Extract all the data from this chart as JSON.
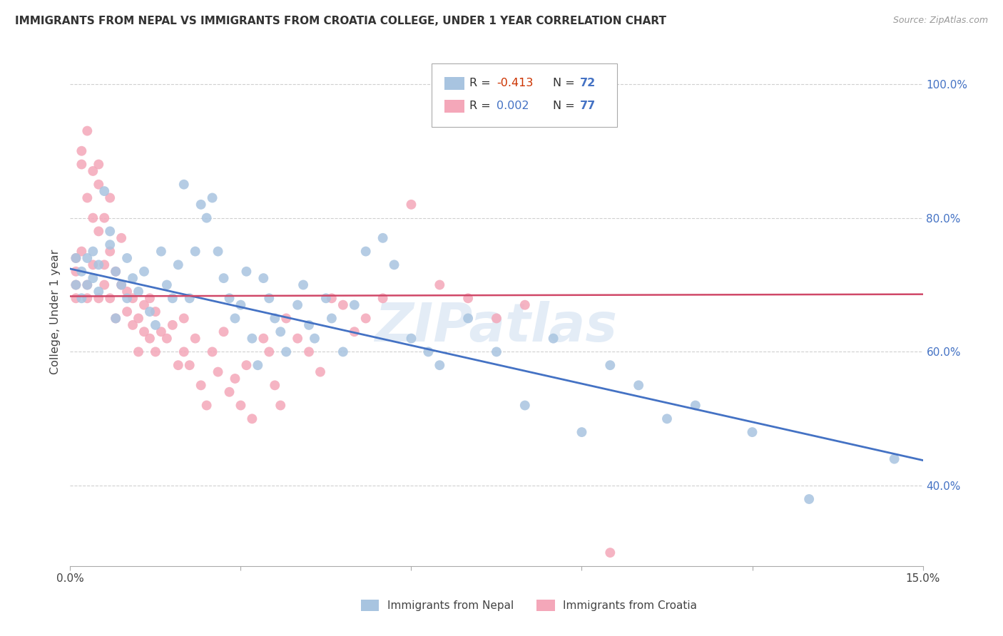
{
  "title": "IMMIGRANTS FROM NEPAL VS IMMIGRANTS FROM CROATIA COLLEGE, UNDER 1 YEAR CORRELATION CHART",
  "source": "Source: ZipAtlas.com",
  "ylabel": "College, Under 1 year",
  "xlim": [
    0.0,
    0.15
  ],
  "ylim": [
    0.28,
    1.04
  ],
  "yticks": [
    0.4,
    0.6,
    0.8,
    1.0
  ],
  "ytick_labels": [
    "40.0%",
    "60.0%",
    "80.0%",
    "100.0%"
  ],
  "xticks": [
    0.0,
    0.03,
    0.06,
    0.09,
    0.12,
    0.15
  ],
  "legend_nepal_r": "-0.413",
  "legend_nepal_n": "72",
  "legend_croatia_r": "0.002",
  "legend_croatia_n": "77",
  "legend_label_nepal": "Immigrants from Nepal",
  "legend_label_croatia": "Immigrants from Croatia",
  "blue_color": "#a8c4e0",
  "pink_color": "#f4a7b9",
  "blue_line_color": "#4472c4",
  "pink_line_color": "#d04868",
  "r_neg_color": "#cc3300",
  "r_pos_color": "#4472c4",
  "n_color": "#4472c4",
  "nepal_x": [
    0.001,
    0.001,
    0.002,
    0.002,
    0.003,
    0.003,
    0.004,
    0.004,
    0.005,
    0.005,
    0.006,
    0.007,
    0.007,
    0.008,
    0.008,
    0.009,
    0.01,
    0.01,
    0.011,
    0.012,
    0.013,
    0.014,
    0.015,
    0.016,
    0.017,
    0.018,
    0.019,
    0.02,
    0.021,
    0.022,
    0.023,
    0.024,
    0.025,
    0.026,
    0.027,
    0.028,
    0.029,
    0.03,
    0.031,
    0.032,
    0.033,
    0.034,
    0.035,
    0.036,
    0.037,
    0.038,
    0.04,
    0.041,
    0.042,
    0.043,
    0.045,
    0.046,
    0.048,
    0.05,
    0.052,
    0.055,
    0.057,
    0.06,
    0.063,
    0.065,
    0.07,
    0.075,
    0.08,
    0.085,
    0.09,
    0.095,
    0.1,
    0.105,
    0.11,
    0.12,
    0.13,
    0.145
  ],
  "nepal_y": [
    0.74,
    0.7,
    0.72,
    0.68,
    0.74,
    0.7,
    0.75,
    0.71,
    0.73,
    0.69,
    0.84,
    0.78,
    0.76,
    0.72,
    0.65,
    0.7,
    0.68,
    0.74,
    0.71,
    0.69,
    0.72,
    0.66,
    0.64,
    0.75,
    0.7,
    0.68,
    0.73,
    0.85,
    0.68,
    0.75,
    0.82,
    0.8,
    0.83,
    0.75,
    0.71,
    0.68,
    0.65,
    0.67,
    0.72,
    0.62,
    0.58,
    0.71,
    0.68,
    0.65,
    0.63,
    0.6,
    0.67,
    0.7,
    0.64,
    0.62,
    0.68,
    0.65,
    0.6,
    0.67,
    0.75,
    0.77,
    0.73,
    0.62,
    0.6,
    0.58,
    0.65,
    0.6,
    0.52,
    0.62,
    0.48,
    0.58,
    0.55,
    0.5,
    0.52,
    0.48,
    0.38,
    0.44
  ],
  "croatia_x": [
    0.001,
    0.001,
    0.001,
    0.001,
    0.002,
    0.002,
    0.002,
    0.003,
    0.003,
    0.003,
    0.003,
    0.004,
    0.004,
    0.004,
    0.005,
    0.005,
    0.005,
    0.005,
    0.006,
    0.006,
    0.006,
    0.007,
    0.007,
    0.007,
    0.008,
    0.008,
    0.009,
    0.009,
    0.01,
    0.01,
    0.011,
    0.011,
    0.012,
    0.012,
    0.013,
    0.013,
    0.014,
    0.014,
    0.015,
    0.015,
    0.016,
    0.017,
    0.018,
    0.019,
    0.02,
    0.02,
    0.021,
    0.022,
    0.023,
    0.024,
    0.025,
    0.026,
    0.027,
    0.028,
    0.029,
    0.03,
    0.031,
    0.032,
    0.034,
    0.035,
    0.036,
    0.037,
    0.038,
    0.04,
    0.042,
    0.044,
    0.046,
    0.048,
    0.05,
    0.052,
    0.055,
    0.06,
    0.065,
    0.07,
    0.075,
    0.08,
    0.095
  ],
  "croatia_y": [
    0.74,
    0.72,
    0.7,
    0.68,
    0.9,
    0.88,
    0.75,
    0.93,
    0.7,
    0.83,
    0.68,
    0.87,
    0.8,
    0.73,
    0.88,
    0.85,
    0.78,
    0.68,
    0.8,
    0.73,
    0.7,
    0.83,
    0.75,
    0.68,
    0.72,
    0.65,
    0.77,
    0.7,
    0.69,
    0.66,
    0.68,
    0.64,
    0.65,
    0.6,
    0.67,
    0.63,
    0.68,
    0.62,
    0.66,
    0.6,
    0.63,
    0.62,
    0.64,
    0.58,
    0.65,
    0.6,
    0.58,
    0.62,
    0.55,
    0.52,
    0.6,
    0.57,
    0.63,
    0.54,
    0.56,
    0.52,
    0.58,
    0.5,
    0.62,
    0.6,
    0.55,
    0.52,
    0.65,
    0.62,
    0.6,
    0.57,
    0.68,
    0.67,
    0.63,
    0.65,
    0.68,
    0.82,
    0.7,
    0.68,
    0.65,
    0.67,
    0.3
  ],
  "nepal_line_x": [
    0.0,
    0.15
  ],
  "nepal_line_y": [
    0.724,
    0.438
  ],
  "croatia_line_x": [
    0.0,
    0.15
  ],
  "croatia_line_y": [
    0.683,
    0.686
  ],
  "watermark": "ZIPatlas",
  "bg_color": "#ffffff",
  "grid_color": "#d0d0d0"
}
